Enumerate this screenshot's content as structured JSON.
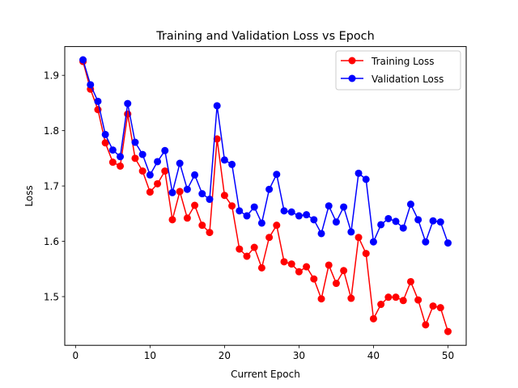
{
  "chart_data": {
    "type": "line",
    "title": "Training and Validation Loss vs Epoch",
    "xlabel": "Current Epoch",
    "ylabel": "Loss",
    "xlim": [
      -1.45,
      52.45
    ],
    "ylim": [
      1.412,
      1.952
    ],
    "xticks": [
      0,
      10,
      20,
      30,
      40,
      50
    ],
    "yticks": [
      1.5,
      1.6,
      1.7,
      1.8,
      1.9
    ],
    "legend_position": "top-right",
    "grid": false,
    "x": [
      1,
      2,
      3,
      4,
      5,
      6,
      7,
      8,
      9,
      10,
      11,
      12,
      13,
      14,
      15,
      16,
      17,
      18,
      19,
      20,
      21,
      22,
      23,
      24,
      25,
      26,
      27,
      28,
      29,
      30,
      31,
      32,
      33,
      34,
      35,
      36,
      37,
      38,
      39,
      40,
      41,
      42,
      43,
      44,
      45,
      46,
      47,
      48,
      49,
      50
    ],
    "series": [
      {
        "name": "Training Loss",
        "color": "#ff0000",
        "values": [
          1.925,
          1.875,
          1.838,
          1.778,
          1.743,
          1.736,
          1.83,
          1.75,
          1.727,
          1.689,
          1.704,
          1.727,
          1.639,
          1.69,
          1.642,
          1.665,
          1.629,
          1.616,
          1.785,
          1.683,
          1.664,
          1.586,
          1.573,
          1.589,
          1.552,
          1.607,
          1.629,
          1.563,
          1.559,
          1.545,
          1.554,
          1.532,
          1.496,
          1.557,
          1.524,
          1.547,
          1.497,
          1.607,
          1.578,
          1.46,
          1.486,
          1.499,
          1.499,
          1.493,
          1.527,
          1.494,
          1.449,
          1.483,
          1.48,
          1.437
        ]
      },
      {
        "name": "Validation Loss",
        "color": "#0000ff",
        "values": [
          1.928,
          1.883,
          1.853,
          1.793,
          1.765,
          1.753,
          1.849,
          1.779,
          1.757,
          1.72,
          1.744,
          1.764,
          1.688,
          1.741,
          1.694,
          1.72,
          1.686,
          1.676,
          1.845,
          1.747,
          1.739,
          1.655,
          1.646,
          1.662,
          1.633,
          1.694,
          1.721,
          1.655,
          1.653,
          1.646,
          1.648,
          1.639,
          1.614,
          1.664,
          1.635,
          1.662,
          1.617,
          1.723,
          1.712,
          1.599,
          1.63,
          1.641,
          1.636,
          1.624,
          1.667,
          1.639,
          1.599,
          1.637,
          1.635,
          1.597
        ]
      }
    ]
  }
}
